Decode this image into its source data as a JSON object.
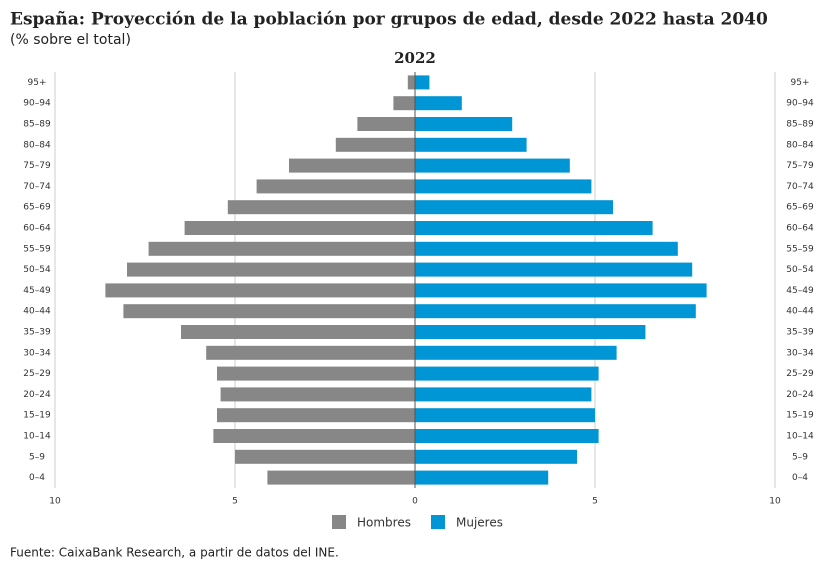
{
  "chart_data": {
    "type": "pyramid",
    "title": "España: Proyección de la población por grupos de edad, desde 2022 hasta 2040",
    "subtitle": "(% sobre el total)",
    "panel_title": "2022",
    "categories": [
      "95+",
      "90–94",
      "85–89",
      "80–84",
      "75–79",
      "70–74",
      "65–69",
      "60–64",
      "55–59",
      "50–54",
      "45–49",
      "40–44",
      "35–39",
      "30–34",
      "25–29",
      "20–24",
      "15–19",
      "10–14",
      "5–9",
      "0–4"
    ],
    "series": [
      {
        "name": "Hombres",
        "color": "#878787",
        "values": [
          -0.2,
          -0.6,
          -1.6,
          -2.2,
          -3.5,
          -4.4,
          -5.2,
          -6.4,
          -7.4,
          -8.0,
          -8.6,
          -8.1,
          -6.5,
          -5.8,
          -5.5,
          -5.4,
          -5.5,
          -5.6,
          -5.0,
          -4.1
        ]
      },
      {
        "name": "Mujeres",
        "color": "#0096d6",
        "values": [
          0.4,
          1.3,
          2.7,
          3.1,
          4.3,
          4.9,
          5.5,
          6.6,
          7.3,
          7.7,
          8.1,
          7.8,
          6.4,
          5.6,
          5.1,
          4.9,
          5.0,
          5.1,
          4.5,
          3.7
        ]
      }
    ],
    "xlim": [
      -10,
      10
    ],
    "xticks": [
      {
        "value": -10,
        "label": "10"
      },
      {
        "value": -5,
        "label": "5"
      },
      0,
      5,
      10
    ],
    "grid": true,
    "legend": "bottom",
    "source": "Fuente: CaixaBank Research, a partir de datos del INE."
  }
}
